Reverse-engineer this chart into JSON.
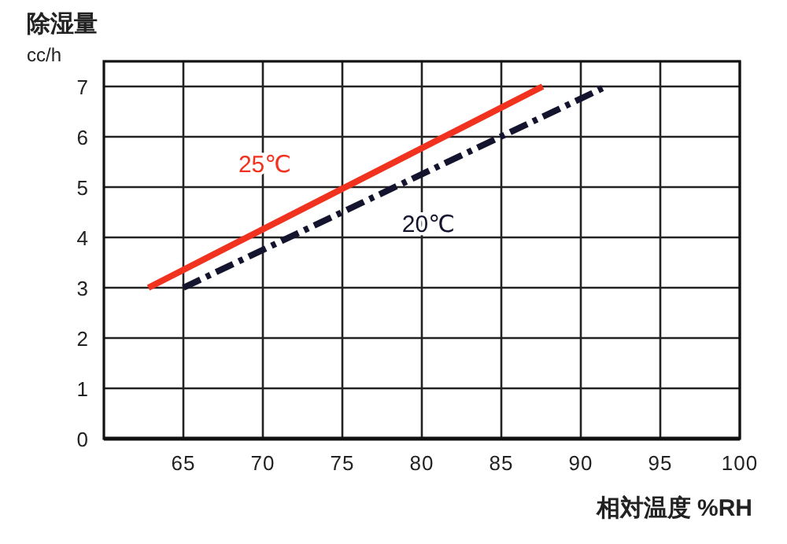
{
  "chart_data": {
    "type": "line",
    "ylabel": "除湿量",
    "annotations": [
      "cc/h"
    ],
    "xlabel": "相対温度 %RH",
    "xlim": [
      60,
      100
    ],
    "xticks": [
      65,
      70,
      75,
      80,
      85,
      90,
      95,
      100
    ],
    "ylim": [
      0,
      7.5
    ],
    "yticks": [
      0,
      1,
      2,
      3,
      4,
      5,
      6,
      7
    ],
    "grid": true,
    "series": [
      {
        "name": "25℃",
        "color": "#f0321e",
        "x": [
          62.8,
          87.6
        ],
        "values": [
          3,
          7
        ],
        "line_style": "solid"
      },
      {
        "name": "20℃",
        "color": "#14142e",
        "x": [
          65,
          91.6
        ],
        "values": [
          3,
          7
        ],
        "line_style": "dashdot"
      }
    ]
  }
}
